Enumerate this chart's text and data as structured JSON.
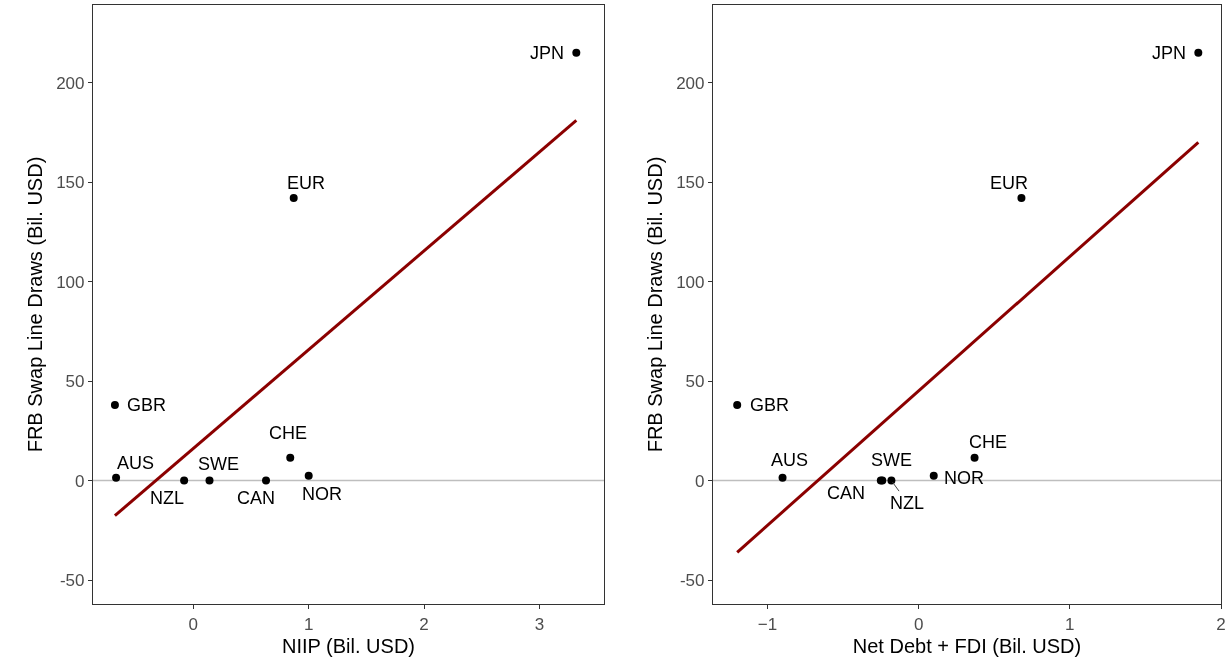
{
  "chart_data": [
    {
      "type": "scatter",
      "xlabel": "NIIP (Bil. USD)",
      "ylabel": "FRB Swap Line Draws (Bil. USD)",
      "xlim": [
        -0.87,
        3.56
      ],
      "ylim": [
        -62,
        239
      ],
      "xticks": [
        0,
        1,
        2,
        3
      ],
      "yticks": [
        -50,
        0,
        50,
        100,
        150,
        200
      ],
      "grid": false,
      "series": [
        {
          "marker": "circle",
          "color": "#000000",
          "x": [
            3.32,
            0.87,
            -0.68,
            -0.67,
            -0.08,
            0.14,
            0.63,
            0.84,
            1.0
          ],
          "values": [
            215,
            142,
            38,
            1.5,
            0,
            0,
            0,
            11.5,
            2.5
          ]
        },
        {
          "type": "line",
          "marker": "none",
          "color": "#8b0000",
          "x": [
            -0.68,
            3.32
          ],
          "values": [
            -17.6,
            181
          ]
        }
      ],
      "ref_lines": [
        {
          "axis": "y",
          "value": 0,
          "color": "#bebebe"
        }
      ],
      "annotations": [
        {
          "text": "JPN",
          "x": 3.32,
          "y": 215
        },
        {
          "text": "EUR",
          "x": 0.87,
          "y": 142
        },
        {
          "text": "GBR",
          "x": -0.68,
          "y": 38
        },
        {
          "text": "AUS",
          "x": -0.67,
          "y": 1.5
        },
        {
          "text": "NZL",
          "x": -0.08,
          "y": 0
        },
        {
          "text": "SWE",
          "x": 0.14,
          "y": 0
        },
        {
          "text": "CAN",
          "x": 0.63,
          "y": 0
        },
        {
          "text": "CHE",
          "x": 0.84,
          "y": 11.5
        },
        {
          "text": "NOR",
          "x": 1.0,
          "y": 2.5
        }
      ]
    },
    {
      "type": "scatter",
      "xlabel": "Net Debt + FDI (Bil. USD)",
      "ylabel": "FRB Swap Line Draws (Bil. USD)",
      "xlim": [
        -1.36,
        2.0
      ],
      "ylim": [
        -62,
        239
      ],
      "xticks": [
        {
          "value": -1,
          "label": "−1"
        },
        0,
        1,
        2
      ],
      "yticks": [
        -50,
        0,
        50,
        100,
        150,
        200
      ],
      "grid": false,
      "series": [
        {
          "marker": "circle",
          "color": "#000000",
          "x": [
            1.85,
            0.68,
            -1.2,
            -0.9,
            -0.24,
            -0.25,
            -0.18,
            0.1,
            0.37
          ],
          "values": [
            215,
            142,
            38,
            1.5,
            0,
            0,
            0,
            2.5,
            11.5
          ]
        },
        {
          "type": "line",
          "marker": "none",
          "color": "#8b0000",
          "x": [
            -1.2,
            1.85
          ],
          "values": [
            -36,
            170
          ]
        }
      ],
      "ref_lines": [
        {
          "axis": "y",
          "value": 0,
          "color": "#bebebe"
        }
      ],
      "annotations": [
        {
          "text": "JPN",
          "x": 1.85,
          "y": 215
        },
        {
          "text": "EUR",
          "x": 0.68,
          "y": 142
        },
        {
          "text": "GBR",
          "x": -1.2,
          "y": 38
        },
        {
          "text": "AUS",
          "x": -0.9,
          "y": 1.5
        },
        {
          "text": "SWE",
          "x": -0.24,
          "y": 0
        },
        {
          "text": "CAN",
          "x": -0.25,
          "y": 0
        },
        {
          "text": "NZL",
          "x": -0.18,
          "y": 0
        },
        {
          "text": "NOR",
          "x": 0.1,
          "y": 2.5
        },
        {
          "text": "CHE",
          "x": 0.37,
          "y": 11.5
        }
      ]
    }
  ]
}
